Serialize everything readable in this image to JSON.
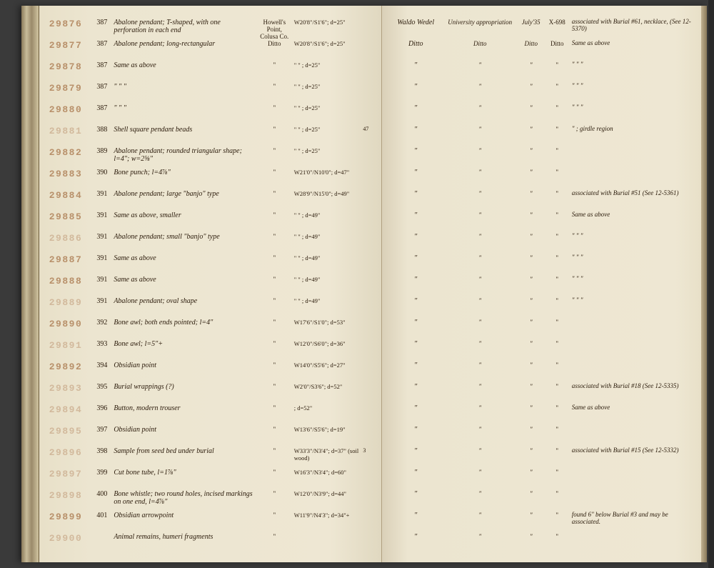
{
  "rows": [
    {
      "cat": "29876",
      "lot": "387",
      "desc": "Abalone pendant; T-shaped, with one perforation in each end",
      "loc": "Howell's Point, Colusa Co.",
      "coord": "W20'8\"/S1'6\"; d=25\"",
      "margin": "",
      "collector": "Waldo Wedel",
      "accession": "University appropriation",
      "date": "July'35",
      "xnum": "X-698",
      "remarks": "associated with Burial #61, necklace, (See 12-5370)"
    },
    {
      "cat": "29877",
      "lot": "387",
      "desc": "Abalone pendant; long-rectangular",
      "loc": "Ditto",
      "coord": "W20'8\"/S1'6\"; d=25\"",
      "margin": "",
      "collector": "Ditto",
      "accession": "Ditto",
      "date": "Ditto",
      "xnum": "Ditto",
      "remarks": "Same as above"
    },
    {
      "cat": "29878",
      "lot": "387",
      "desc": "Same as above",
      "loc": "\"",
      "coord": "\"    \"  ; d=25\"",
      "margin": "",
      "collector": "\"",
      "accession": "\"",
      "date": "\"",
      "xnum": "\"",
      "remarks": "\"    \"    \""
    },
    {
      "cat": "29879",
      "lot": "387",
      "desc": "\"    \"    \"",
      "loc": "\"",
      "coord": "\"    \"  ; d=25\"",
      "margin": "",
      "collector": "\"",
      "accession": "\"",
      "date": "\"",
      "xnum": "\"",
      "remarks": "\"    \"    \""
    },
    {
      "cat": "29880",
      "lot": "387",
      "desc": "\"    \"    \"",
      "loc": "\"",
      "coord": "\"    \"  ; d=25\"",
      "margin": "",
      "collector": "\"",
      "accession": "\"",
      "date": "\"",
      "xnum": "\"",
      "remarks": "\"    \"    \""
    },
    {
      "cat": "29881",
      "lot": "388",
      "desc": "Shell square pendant beads",
      "loc": "\"",
      "coord": "\"    \"  ; d=25\"",
      "margin": "47",
      "collector": "\"",
      "accession": "\"",
      "date": "\"",
      "xnum": "\"",
      "remarks": "\"  ; girdle region"
    },
    {
      "cat": "29882",
      "lot": "389",
      "desc": "Abalone pendant; rounded triangular shape; l=4\"; w=2⅝\"",
      "loc": "\"",
      "coord": "\"    \"  ; d=25\"",
      "margin": "",
      "collector": "\"",
      "accession": "\"",
      "date": "\"",
      "xnum": "\"",
      "remarks": ""
    },
    {
      "cat": "29883",
      "lot": "390",
      "desc": "Bone punch; l=4⅞\"",
      "loc": "\"",
      "coord": "W21'0\"/N10'0\"; d=47\"",
      "margin": "",
      "collector": "\"",
      "accession": "\"",
      "date": "\"",
      "xnum": "\"",
      "remarks": ""
    },
    {
      "cat": "29884",
      "lot": "391",
      "desc": "Abalone pendant; large \"banjo\" type",
      "loc": "\"",
      "coord": "W28'9\"/N15'0\"; d=49\"",
      "margin": "",
      "collector": "\"",
      "accession": "\"",
      "date": "\"",
      "xnum": "\"",
      "remarks": "associated with Burial #51 (See 12-5361)"
    },
    {
      "cat": "29885",
      "lot": "391",
      "desc": "Same as above, smaller",
      "loc": "\"",
      "coord": "\"    \"  ; d=49\"",
      "margin": "",
      "collector": "\"",
      "accession": "\"",
      "date": "\"",
      "xnum": "\"",
      "remarks": "Same as above"
    },
    {
      "cat": "29886",
      "lot": "391",
      "desc": "Abalone pendant; small \"banjo\" type",
      "loc": "\"",
      "coord": "\"    \"  ; d=49\"",
      "margin": "",
      "collector": "\"",
      "accession": "\"",
      "date": "\"",
      "xnum": "\"",
      "remarks": "\"    \"    \""
    },
    {
      "cat": "29887",
      "lot": "391",
      "desc": "Same as above",
      "loc": "\"",
      "coord": "\"    \"  ; d=49\"",
      "margin": "",
      "collector": "\"",
      "accession": "\"",
      "date": "\"",
      "xnum": "\"",
      "remarks": "\"    \"    \""
    },
    {
      "cat": "29888",
      "lot": "391",
      "desc": "Same as above",
      "loc": "\"",
      "coord": "\"    \"  ; d=49\"",
      "margin": "",
      "collector": "\"",
      "accession": "\"",
      "date": "\"",
      "xnum": "\"",
      "remarks": "\"    \"    \""
    },
    {
      "cat": "29889",
      "lot": "391",
      "desc": "Abalone pendant; oval shape",
      "loc": "\"",
      "coord": "\"    \"  ; d=49\"",
      "margin": "",
      "collector": "\"",
      "accession": "\"",
      "date": "\"",
      "xnum": "\"",
      "remarks": "\"    \"    \""
    },
    {
      "cat": "29890",
      "lot": "392",
      "desc": "Bone awl; both ends pointed; l=4\"",
      "loc": "\"",
      "coord": "W17'6\"/S1'0\"; d=53\"",
      "margin": "",
      "collector": "\"",
      "accession": "\"",
      "date": "\"",
      "xnum": "\"",
      "remarks": ""
    },
    {
      "cat": "29891",
      "lot": "393",
      "desc": "Bone awl; l=5\"+",
      "loc": "\"",
      "coord": "W12'0\"/S6'0\"; d=36\"",
      "margin": "",
      "collector": "\"",
      "accession": "\"",
      "date": "\"",
      "xnum": "\"",
      "remarks": ""
    },
    {
      "cat": "29892",
      "lot": "394",
      "desc": "Obsidian point",
      "loc": "\"",
      "coord": "W14'0\"/S5'6\"; d=27\"",
      "margin": "",
      "collector": "\"",
      "accession": "\"",
      "date": "\"",
      "xnum": "\"",
      "remarks": ""
    },
    {
      "cat": "29893",
      "lot": "395",
      "desc": "Burial wrappings (?)",
      "loc": "\"",
      "coord": "W2'0\"/S3'6\"; d=52\"",
      "margin": "",
      "collector": "\"",
      "accession": "\"",
      "date": "\"",
      "xnum": "\"",
      "remarks": "associated with Burial #18 (See 12-5335)"
    },
    {
      "cat": "29894",
      "lot": "396",
      "desc": "Button, modern trouser",
      "loc": "\"",
      "coord": "; d=52\"",
      "margin": "",
      "collector": "\"",
      "accession": "\"",
      "date": "\"",
      "xnum": "\"",
      "remarks": "Same as above"
    },
    {
      "cat": "29895",
      "lot": "397",
      "desc": "Obsidian point",
      "loc": "\"",
      "coord": "W13'6\"/S5'6\"; d=19\"",
      "margin": "",
      "collector": "\"",
      "accession": "\"",
      "date": "\"",
      "xnum": "\"",
      "remarks": ""
    },
    {
      "cat": "29896",
      "lot": "398",
      "desc": "Sample from seed bed under burial",
      "loc": "\"",
      "coord": "W33'3\"/N3'4\"; d=37\" (soil wood)",
      "margin": "3",
      "collector": "\"",
      "accession": "\"",
      "date": "\"",
      "xnum": "\"",
      "remarks": "associated with Burial #15 (See 12-5332)"
    },
    {
      "cat": "29897",
      "lot": "399",
      "desc": "Cut bone tube, l=1⅞\"",
      "loc": "\"",
      "coord": "W16'3\"/N3'4\"; d=60\"",
      "margin": "",
      "collector": "\"",
      "accession": "\"",
      "date": "\"",
      "xnum": "\"",
      "remarks": ""
    },
    {
      "cat": "29898",
      "lot": "400",
      "desc": "Bone whistle; two round holes, incised markings on one end, l=4⅞\"",
      "loc": "\"",
      "coord": "W12'0\"/N3'9\"; d=44\"",
      "margin": "",
      "collector": "\"",
      "accession": "\"",
      "date": "\"",
      "xnum": "\"",
      "remarks": ""
    },
    {
      "cat": "29899",
      "lot": "401",
      "desc": "Obsidian arrowpoint",
      "loc": "\"",
      "coord": "W11'9\"/N4'3\"; d=34\"+",
      "margin": "",
      "collector": "\"",
      "accession": "\"",
      "date": "\"",
      "xnum": "\"",
      "remarks": "found 6\" below Burial #3 and may be associated."
    },
    {
      "cat": "29900",
      "lot": "",
      "desc": "Animal remains, humeri fragments",
      "loc": "\"",
      "coord": "",
      "margin": "",
      "collector": "\"",
      "accession": "\"",
      "date": "\"",
      "xnum": "\"",
      "remarks": ""
    }
  ],
  "faded_catalogs": [
    "29881",
    "29886",
    "29889",
    "29891",
    "29893",
    "29894",
    "29895",
    "29896",
    "29897",
    "29898",
    "29900"
  ]
}
